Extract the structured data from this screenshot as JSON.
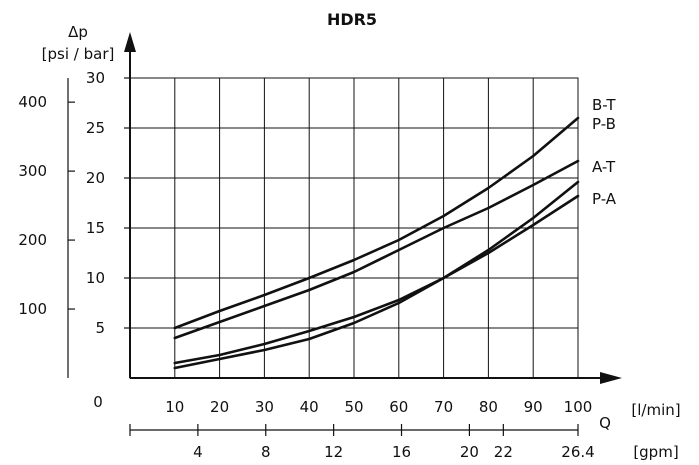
{
  "chart_data": {
    "type": "line",
    "title": "HDR5",
    "ylabel_symbol": "Δp",
    "ylabel_units": "[psi / bar]",
    "xlabel": "Q",
    "x_unit_primary": "[l/min]",
    "x_unit_secondary": "[gpm]",
    "xlim": [
      0,
      100
    ],
    "ylim_bar": [
      0,
      30
    ],
    "ylim_psi": [
      0,
      435
    ],
    "grid": true,
    "x_ticks": [
      "10",
      "20",
      "30",
      "40",
      "50",
      "60",
      "70",
      "80",
      "90",
      "100"
    ],
    "x_ticks_gpm": [
      "4",
      "8",
      "12",
      "16",
      "20",
      "22",
      "26.4"
    ],
    "y_ticks_bar": [
      "5",
      "10",
      "15",
      "20",
      "25",
      "30"
    ],
    "y_ticks_psi": [
      "0",
      "100",
      "200",
      "300",
      "400"
    ],
    "series": [
      {
        "name": "B-T",
        "x": [
          10,
          20,
          30,
          40,
          50,
          60,
          70,
          80,
          90,
          100
        ],
        "y": [
          5,
          6.7,
          8.3,
          10,
          11.8,
          13.8,
          16.2,
          19,
          22.2,
          26
        ]
      },
      {
        "name": "P-B",
        "x": [
          10,
          20,
          30,
          40,
          50,
          60,
          70,
          80,
          90,
          100
        ],
        "y": [
          4,
          5.6,
          7.2,
          8.8,
          10.6,
          12.8,
          15,
          17,
          19.3,
          21.7
        ]
      },
      {
        "name": "A-T",
        "x": [
          10,
          20,
          30,
          40,
          50,
          60,
          70,
          80,
          90,
          100
        ],
        "y": [
          1.5,
          2.3,
          3.4,
          4.7,
          6.1,
          7.8,
          10,
          12.8,
          16,
          19.6
        ]
      },
      {
        "name": "P-A",
        "x": [
          10,
          20,
          30,
          40,
          50,
          60,
          70,
          80,
          90,
          100
        ],
        "y": [
          1,
          1.9,
          2.8,
          3.9,
          5.5,
          7.5,
          10,
          12.5,
          15.3,
          18.2
        ]
      }
    ]
  }
}
